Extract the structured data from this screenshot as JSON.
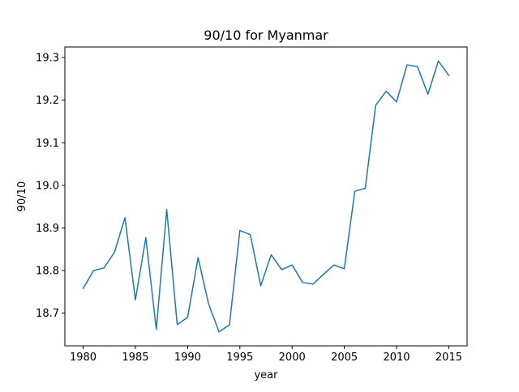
{
  "chart_data": {
    "type": "line",
    "title": "90/10 for Myanmar",
    "xlabel": "year",
    "ylabel": "90/10",
    "xlim": [
      1978.25,
      2016.75
    ],
    "ylim": [
      18.623,
      19.325
    ],
    "xticks": [
      1980,
      1985,
      1990,
      1995,
      2000,
      2005,
      2010,
      2015
    ],
    "yticks": [
      18.7,
      18.8,
      18.9,
      19.0,
      19.1,
      19.2,
      19.3
    ],
    "ytick_labels": [
      "18.7",
      "18.8",
      "18.9",
      "19.0",
      "19.1",
      "19.2",
      "19.3"
    ],
    "grid": false,
    "series": [
      {
        "color": "#1f77b4",
        "x": [
          1980,
          1981,
          1982,
          1983,
          1984,
          1985,
          1986,
          1987,
          1988,
          1989,
          1990,
          1991,
          1992,
          1993,
          1994,
          1995,
          1996,
          1997,
          1998,
          1999,
          2000,
          2001,
          2002,
          2003,
          2004,
          2005,
          2006,
          2007,
          2008,
          2009,
          2010,
          2011,
          2012,
          2013,
          2014,
          2015
        ],
        "y": [
          18.758,
          18.8,
          18.806,
          18.843,
          18.924,
          18.731,
          18.877,
          18.662,
          18.943,
          18.673,
          18.69,
          18.83,
          18.722,
          18.656,
          18.672,
          18.894,
          18.884,
          18.764,
          18.837,
          18.802,
          18.813,
          18.772,
          18.768,
          18.791,
          18.813,
          18.804,
          18.986,
          18.993,
          19.188,
          19.221,
          19.196,
          19.283,
          19.279,
          19.214,
          19.292,
          19.258
        ]
      }
    ]
  }
}
